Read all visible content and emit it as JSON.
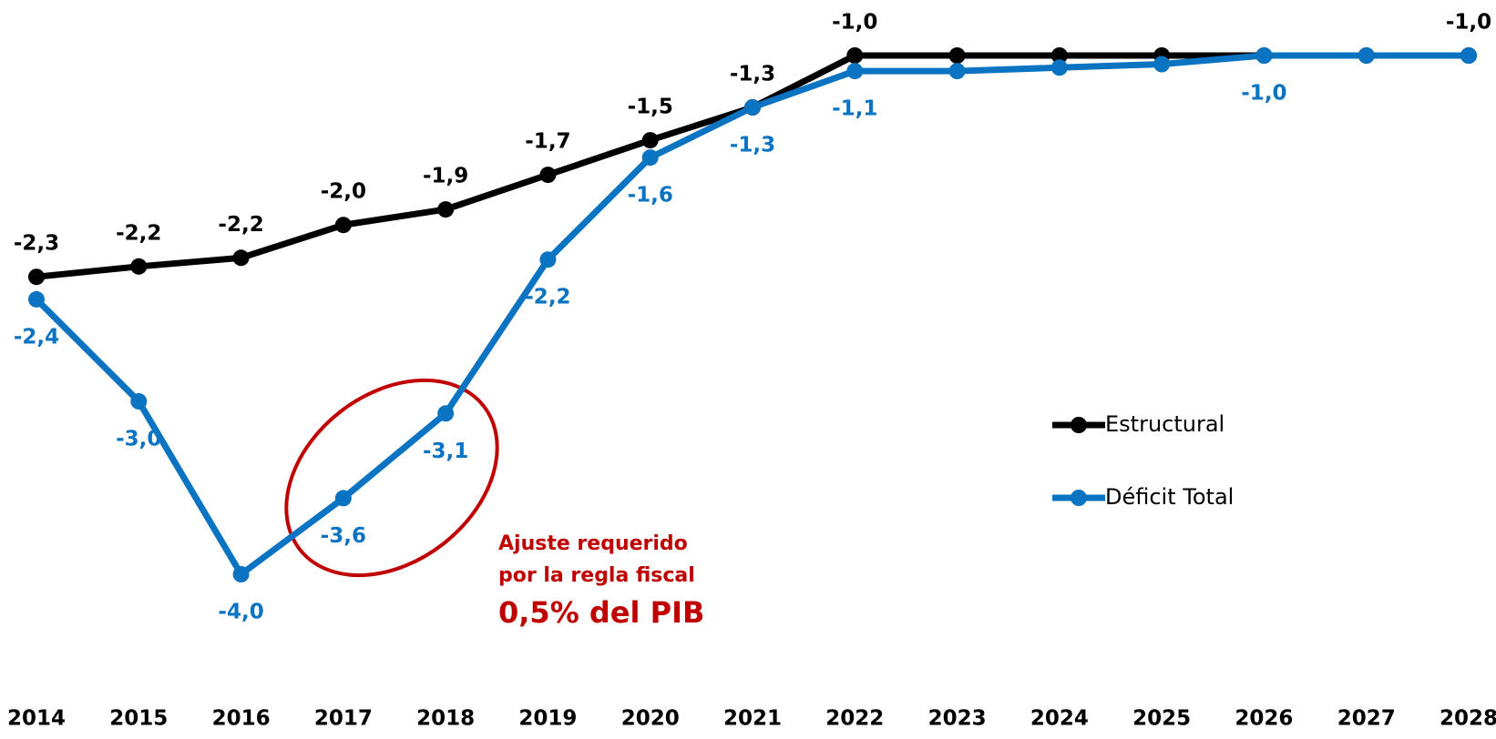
{
  "chart_data": {
    "type": "line",
    "categories": [
      "2014",
      "2015",
      "2016",
      "2017",
      "2018",
      "2019",
      "2020",
      "2021",
      "2022",
      "2023",
      "2024",
      "2025",
      "2026",
      "2027",
      "2028"
    ],
    "series": [
      {
        "name": "Estructural",
        "color": "#000000",
        "values": [
          -2.28,
          -2.22,
          -2.17,
          -1.98,
          -1.89,
          -1.69,
          -1.49,
          -1.3,
          -1.0,
          -1.0,
          -1.0,
          -1.0,
          -1.0,
          -1.0,
          -1.0
        ],
        "value_labels": [
          "-2,3",
          "-2,2",
          "-2,2",
          "-2,0",
          "-1,9",
          "-1,7",
          "-1,5",
          "-1,3",
          "-1,0",
          null,
          null,
          null,
          null,
          null,
          "-1,0"
        ]
      },
      {
        "name": "Déficit Total",
        "color": "#0a73c2",
        "values": [
          -2.41,
          -3.0,
          -4.0,
          -3.56,
          -3.07,
          -2.18,
          -1.59,
          -1.3,
          -1.09,
          -1.09,
          -1.07,
          -1.05,
          -1.0,
          -1.0,
          -1.0
        ],
        "value_labels": [
          "-2,4",
          "-3,0",
          "-4,0",
          "-3,6",
          "-3,1",
          "-2,2",
          "-1,6",
          "-1,3",
          "-1,1",
          null,
          null,
          null,
          "-1,0",
          null,
          null
        ]
      }
    ],
    "ylim": [
      -4.3,
      -0.8
    ],
    "annotation": {
      "lines": [
        "Ajuste requerido",
        "por la regla fiscal"
      ],
      "highlight": "0,5% del PIB",
      "color": "#c00000"
    }
  }
}
